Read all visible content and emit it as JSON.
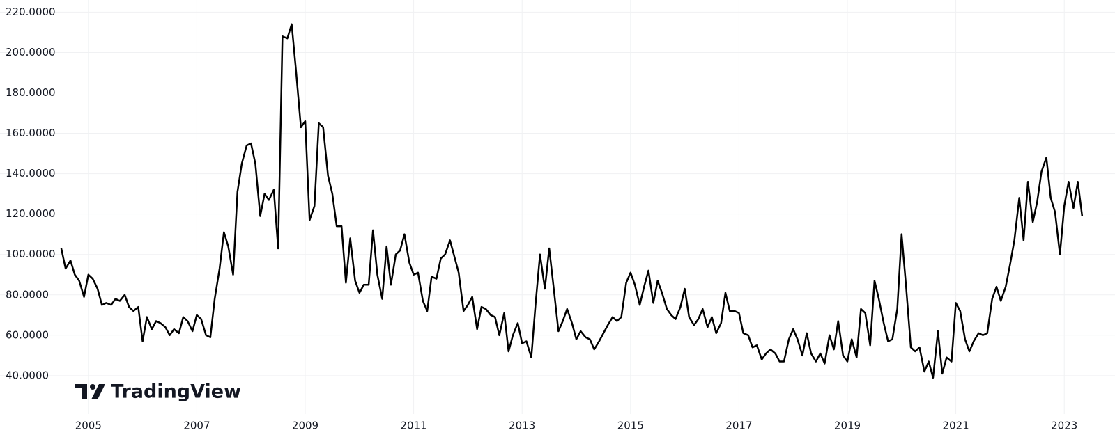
{
  "chart_data": {
    "type": "line",
    "watermark": "TradingView",
    "color": "#000000",
    "grid": true,
    "x": [
      2004.5,
      2004.58,
      2004.67,
      2004.75,
      2004.83,
      2004.92,
      2005,
      2005.08,
      2005.17,
      2005.25,
      2005.33,
      2005.42,
      2005.5,
      2005.58,
      2005.67,
      2005.75,
      2005.83,
      2005.92,
      2006,
      2006.08,
      2006.17,
      2006.25,
      2006.33,
      2006.42,
      2006.5,
      2006.58,
      2006.67,
      2006.75,
      2006.83,
      2006.92,
      2007,
      2007.08,
      2007.17,
      2007.25,
      2007.33,
      2007.42,
      2007.5,
      2007.58,
      2007.67,
      2007.75,
      2007.83,
      2007.92,
      2008,
      2008.08,
      2008.17,
      2008.25,
      2008.33,
      2008.42,
      2008.5,
      2008.58,
      2008.67,
      2008.75,
      2008.83,
      2008.92,
      2009,
      2009.08,
      2009.17,
      2009.25,
      2009.33,
      2009.42,
      2009.5,
      2009.58,
      2009.67,
      2009.75,
      2009.83,
      2009.92,
      2010,
      2010.08,
      2010.17,
      2010.25,
      2010.33,
      2010.42,
      2010.5,
      2010.58,
      2010.67,
      2010.75,
      2010.83,
      2010.92,
      2011,
      2011.08,
      2011.17,
      2011.25,
      2011.33,
      2011.42,
      2011.5,
      2011.58,
      2011.67,
      2011.75,
      2011.83,
      2011.92,
      2012,
      2012.08,
      2012.17,
      2012.25,
      2012.33,
      2012.42,
      2012.5,
      2012.58,
      2012.67,
      2012.75,
      2012.83,
      2012.92,
      2013,
      2013.08,
      2013.17,
      2013.25,
      2013.33,
      2013.42,
      2013.5,
      2013.58,
      2013.67,
      2013.75,
      2013.83,
      2013.92,
      2014,
      2014.08,
      2014.17,
      2014.25,
      2014.33,
      2014.42,
      2014.5,
      2014.58,
      2014.67,
      2014.75,
      2014.83,
      2014.92,
      2015,
      2015.08,
      2015.17,
      2015.25,
      2015.33,
      2015.42,
      2015.5,
      2015.58,
      2015.67,
      2015.75,
      2015.83,
      2015.92,
      2016,
      2016.08,
      2016.17,
      2016.25,
      2016.33,
      2016.42,
      2016.5,
      2016.58,
      2016.67,
      2016.75,
      2016.83,
      2016.92,
      2017,
      2017.08,
      2017.17,
      2017.25,
      2017.33,
      2017.42,
      2017.5,
      2017.58,
      2017.67,
      2017.75,
      2017.83,
      2017.92,
      2018,
      2018.08,
      2018.17,
      2018.25,
      2018.33,
      2018.42,
      2018.5,
      2018.58,
      2018.67,
      2018.75,
      2018.83,
      2018.92,
      2019,
      2019.08,
      2019.17,
      2019.25,
      2019.33,
      2019.42,
      2019.5,
      2019.58,
      2019.67,
      2019.75,
      2019.83,
      2019.92,
      2020,
      2020.08,
      2020.17,
      2020.25,
      2020.33,
      2020.42,
      2020.5,
      2020.58,
      2020.67,
      2020.75,
      2020.83,
      2020.92,
      2021,
      2021.08,
      2021.17,
      2021.25,
      2021.33,
      2021.42,
      2021.5,
      2021.58,
      2021.67,
      2021.75,
      2021.83,
      2021.92,
      2022,
      2022.08,
      2022.17,
      2022.25,
      2022.33,
      2022.42,
      2022.5,
      2022.58,
      2022.67,
      2022.75,
      2022.83,
      2022.92,
      2023,
      2023.08,
      2023.17,
      2023.25,
      2023.33
    ],
    "values": [
      103,
      93,
      97,
      90,
      87,
      79,
      90,
      88,
      83,
      75,
      76,
      75,
      78,
      77,
      80,
      74,
      72,
      74,
      57,
      69,
      63,
      67,
      66,
      64,
      60,
      63,
      61,
      69,
      67,
      62,
      70,
      68,
      60,
      59,
      78,
      93,
      111,
      104,
      90,
      131,
      145,
      154,
      155,
      145,
      119,
      130,
      127,
      132,
      103,
      208,
      207,
      214,
      191,
      163,
      166,
      117,
      124,
      165,
      163,
      139,
      130,
      114,
      114,
      86,
      108,
      87,
      81,
      85,
      85,
      112,
      90,
      78,
      104,
      85,
      100,
      102,
      110,
      96,
      90,
      91,
      77,
      72,
      89,
      88,
      98,
      100,
      107,
      99,
      91,
      72,
      75,
      79,
      63,
      74,
      73,
      70,
      69,
      60,
      71,
      52,
      60,
      66,
      56,
      57,
      49,
      76,
      100,
      83,
      103,
      84,
      62,
      67,
      73,
      66,
      58,
      62,
      59,
      58,
      53,
      57,
      61,
      65,
      69,
      67,
      69,
      86,
      91,
      85,
      75,
      84,
      92,
      76,
      87,
      81,
      73,
      70,
      68,
      74,
      83,
      69,
      65,
      68,
      73,
      64,
      69,
      61,
      66,
      81,
      72,
      72,
      71,
      61,
      60,
      54,
      55,
      48,
      51,
      53,
      51,
      47,
      47,
      58,
      63,
      58,
      50,
      61,
      51,
      47,
      51,
      46,
      60,
      53,
      67,
      50,
      47,
      58,
      49,
      73,
      71,
      55,
      87,
      78,
      66,
      57,
      58,
      73,
      110,
      85,
      54,
      52,
      54,
      42,
      47,
      39,
      62,
      41,
      49,
      47,
      76,
      72,
      58,
      52,
      57,
      61,
      60,
      61,
      78,
      84,
      77,
      84,
      95,
      107,
      128,
      107,
      136,
      116,
      126,
      141,
      148,
      128,
      121,
      100,
      124,
      136,
      123,
      136,
      119
    ],
    "xlim": [
      2003.37,
      2023.55
    ],
    "xticks": [
      2005,
      2007,
      2009,
      2011,
      2013,
      2015,
      2017,
      2019,
      2021,
      2023
    ],
    "ylim": [
      21,
      226
    ],
    "yticks": [
      {
        "value": 40,
        "label": "40.0000"
      },
      {
        "value": 60,
        "label": "60.0000"
      },
      {
        "value": 80,
        "label": "80.0000"
      },
      {
        "value": 100,
        "label": "100.0000"
      },
      {
        "value": 120,
        "label": "120.0000"
      },
      {
        "value": 140,
        "label": "140.0000"
      },
      {
        "value": 160,
        "label": "160.0000"
      },
      {
        "value": 180,
        "label": "180.0000"
      },
      {
        "value": 200,
        "label": "200.0000"
      },
      {
        "value": 220,
        "label": "220.0000"
      }
    ]
  }
}
